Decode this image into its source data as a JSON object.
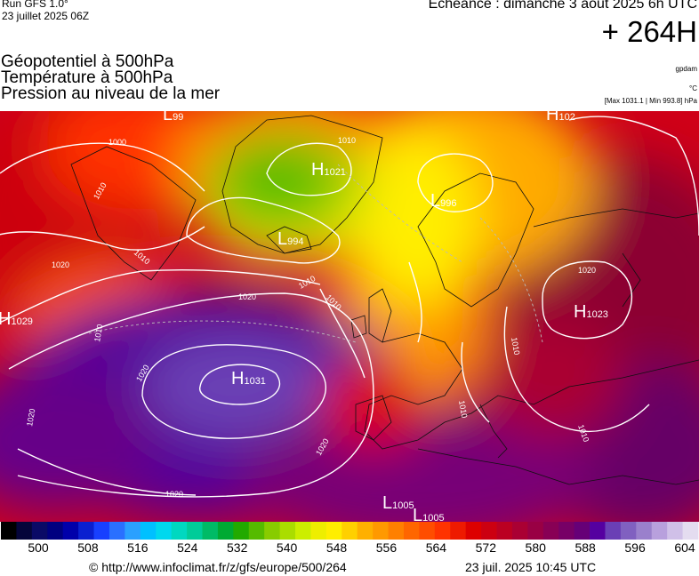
{
  "header": {
    "run_label": "Run GFS 1.0°",
    "run_date": "23 juillet 2025 06Z",
    "echeance": "Echéance : dimanche 3 aout 2025 6h UTC",
    "lead_time": "+ 264H"
  },
  "layers": [
    "Géopotentiel à 500hPa",
    "Température à 500hPa",
    "Pression au niveau de la mer"
  ],
  "units": {
    "geopotential": "gpdam",
    "temperature": "°C",
    "pressure_range": "[Max 1031.1 | Min 993.8] hPa"
  },
  "pressure_centers": [
    {
      "type": "H",
      "value": "1029"
    },
    {
      "type": "H",
      "value": "1031"
    },
    {
      "type": "H",
      "value": "1021"
    },
    {
      "type": "L",
      "value": "994"
    },
    {
      "type": "L",
      "value": "996"
    },
    {
      "type": "H",
      "value": "1023"
    },
    {
      "type": "L",
      "value": "1005"
    },
    {
      "type": "L",
      "value": "1005"
    },
    {
      "type": "L",
      "value": "99"
    },
    {
      "type": "H",
      "value": "102"
    }
  ],
  "isobar_labels": [
    "1000",
    "1010",
    "1010",
    "1010",
    "1020",
    "1020",
    "1020",
    "1020",
    "1020",
    "1020",
    "1020",
    "1010",
    "1010",
    "1010",
    "1010",
    "1010",
    "1010"
  ],
  "color_scale": {
    "ticks": [
      "500",
      "508",
      "516",
      "524",
      "532",
      "540",
      "548",
      "556",
      "564",
      "572",
      "580",
      "588",
      "596",
      "604"
    ],
    "colors": [
      "#000000",
      "#05053a",
      "#0a0a66",
      "#000080",
      "#0000aa",
      "#0a1fd0",
      "#1840ff",
      "#2a70ff",
      "#2aa0ff",
      "#00c0ff",
      "#00d8ee",
      "#00d8c0",
      "#00cc99",
      "#00bb66",
      "#00aa33",
      "#22aa00",
      "#55bb00",
      "#88cc00",
      "#aadd00",
      "#ccee00",
      "#eeee00",
      "#ffee00",
      "#ffd000",
      "#ffb000",
      "#ff9900",
      "#ff8000",
      "#ff6600",
      "#ff4d00",
      "#ff3300",
      "#ee1a00",
      "#dd0000",
      "#cc0011",
      "#bb0022",
      "#aa0033",
      "#990044",
      "#880055",
      "#770066",
      "#660077",
      "#5500a0",
      "#6a3fb5",
      "#8060c0",
      "#9a80cc",
      "#b8a0dd",
      "#d0c0e8",
      "#e4dcf0"
    ]
  },
  "footer": {
    "url": "© http://www.infoclimat.fr/z/gfs/europe/500/264",
    "timestamp": "23 juil. 2025 10:45 UTC"
  }
}
